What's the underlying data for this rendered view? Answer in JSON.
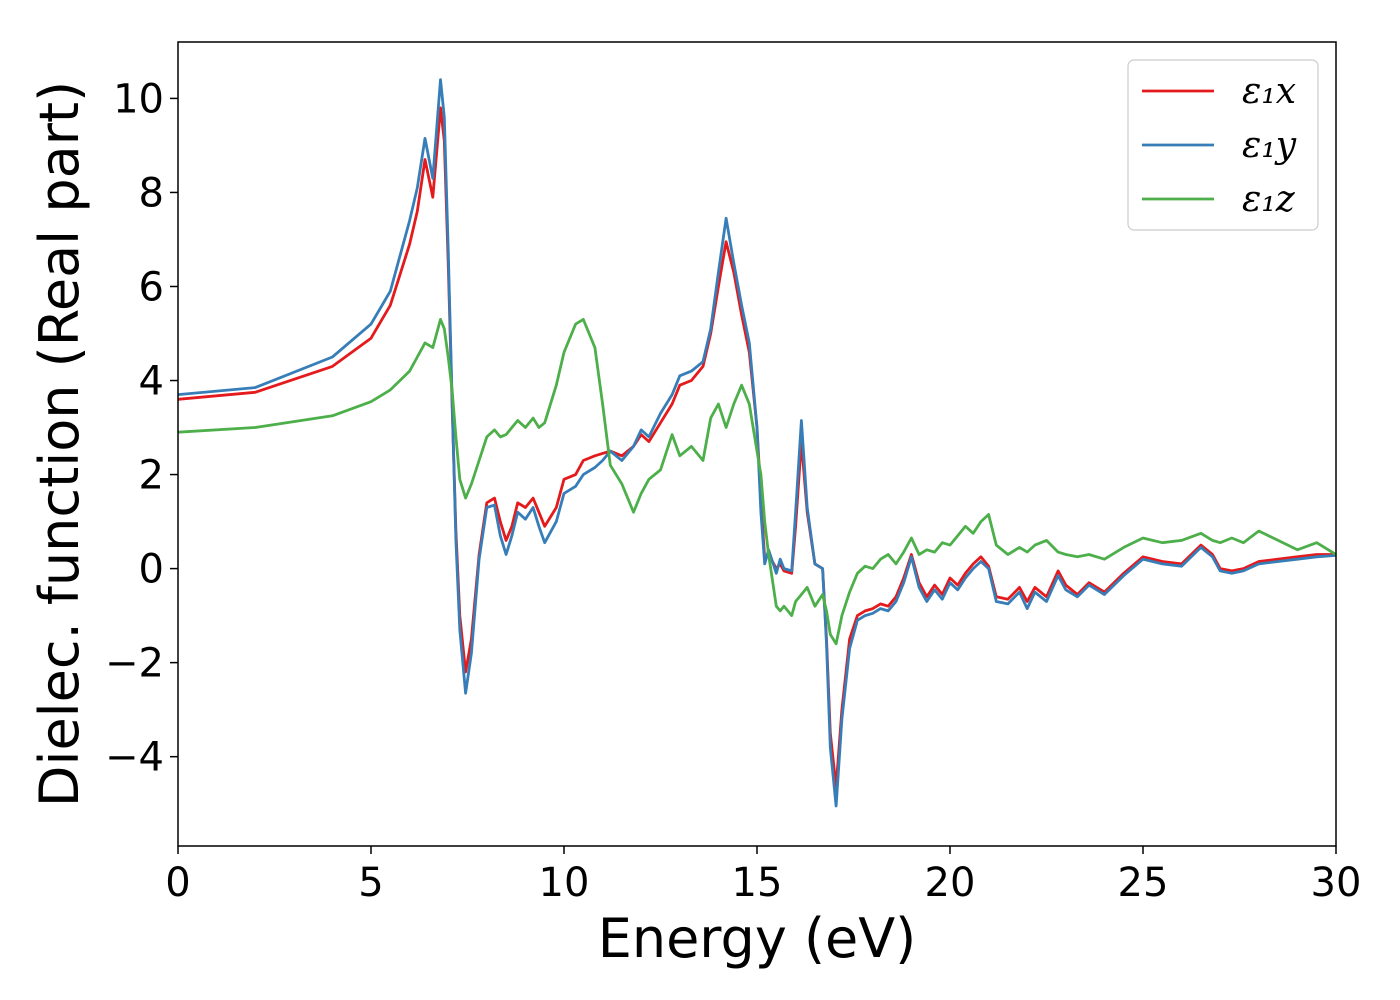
{
  "chart_data": {
    "type": "line",
    "title": "",
    "xlabel": "Energy (eV)",
    "ylabel": "Dielec. function (Real part)",
    "xlim": [
      0,
      30
    ],
    "ylim": [
      -5.9,
      11.2
    ],
    "xticks": [
      0,
      5,
      10,
      15,
      20,
      25,
      30
    ],
    "xtick_labels": [
      "0",
      "5",
      "10",
      "15",
      "20",
      "25",
      "30"
    ],
    "yticks": [
      -4,
      -2,
      0,
      2,
      4,
      6,
      8,
      10
    ],
    "ytick_labels": [
      "−4",
      "−2",
      "0",
      "2",
      "4",
      "6",
      "8",
      "10"
    ],
    "grid": false,
    "legend_position": "top-right",
    "series": [
      {
        "name": "ε₁x",
        "color": "#e41a1c",
        "x": [
          0,
          2,
          4,
          5,
          5.5,
          6,
          6.2,
          6.4,
          6.6,
          6.8,
          6.9,
          7.0,
          7.1,
          7.2,
          7.3,
          7.45,
          7.6,
          7.8,
          8.0,
          8.2,
          8.35,
          8.5,
          8.65,
          8.8,
          9.0,
          9.2,
          9.35,
          9.5,
          9.8,
          10.0,
          10.3,
          10.5,
          10.8,
          11.0,
          11.2,
          11.5,
          11.8,
          12.0,
          12.2,
          12.5,
          12.8,
          13.0,
          13.3,
          13.6,
          13.8,
          14.0,
          14.2,
          14.4,
          14.6,
          14.8,
          15.0,
          15.1,
          15.2,
          15.3,
          15.5,
          15.6,
          15.7,
          15.9,
          16.0,
          16.15,
          16.3,
          16.5,
          16.7,
          16.8,
          16.9,
          17.05,
          17.2,
          17.4,
          17.6,
          17.8,
          18.0,
          18.2,
          18.4,
          18.6,
          18.8,
          19.0,
          19.2,
          19.4,
          19.6,
          19.8,
          20.0,
          20.2,
          20.4,
          20.6,
          20.8,
          21.0,
          21.2,
          21.5,
          21.8,
          22.0,
          22.2,
          22.5,
          22.8,
          23.0,
          23.3,
          23.6,
          24.0,
          24.5,
          25.0,
          25.5,
          26.0,
          26.5,
          26.8,
          27.0,
          27.3,
          27.6,
          28.0,
          28.5,
          29.0,
          29.5,
          30.0
        ],
        "values": [
          3.6,
          3.75,
          4.3,
          4.9,
          5.6,
          6.9,
          7.6,
          8.7,
          7.9,
          9.8,
          9.1,
          6.5,
          3.5,
          0.8,
          -1.0,
          -2.2,
          -1.5,
          0.3,
          1.4,
          1.5,
          1.0,
          0.6,
          0.9,
          1.4,
          1.3,
          1.5,
          1.2,
          0.9,
          1.3,
          1.9,
          2.0,
          2.3,
          2.4,
          2.45,
          2.5,
          2.4,
          2.6,
          2.85,
          2.7,
          3.1,
          3.5,
          3.9,
          4.0,
          4.3,
          5.0,
          6.0,
          6.95,
          6.3,
          5.4,
          4.6,
          3.0,
          1.5,
          0.2,
          0.3,
          0.0,
          0.1,
          -0.05,
          -0.1,
          0.9,
          2.7,
          1.2,
          0.1,
          0.0,
          -1.5,
          -3.5,
          -4.65,
          -3.0,
          -1.5,
          -1.0,
          -0.9,
          -0.85,
          -0.75,
          -0.8,
          -0.6,
          -0.2,
          0.3,
          -0.3,
          -0.6,
          -0.35,
          -0.55,
          -0.2,
          -0.35,
          -0.1,
          0.1,
          0.25,
          0.05,
          -0.6,
          -0.65,
          -0.4,
          -0.7,
          -0.4,
          -0.6,
          -0.05,
          -0.35,
          -0.55,
          -0.3,
          -0.5,
          -0.1,
          0.25,
          0.15,
          0.1,
          0.5,
          0.3,
          0.0,
          -0.05,
          0.0,
          0.15,
          0.2,
          0.25,
          0.3,
          0.3
        ]
      },
      {
        "name": "ε₁y",
        "color": "#377eb8",
        "x": [
          0,
          2,
          4,
          5,
          5.5,
          6,
          6.2,
          6.4,
          6.6,
          6.8,
          6.9,
          7.0,
          7.1,
          7.2,
          7.3,
          7.45,
          7.6,
          7.8,
          8.0,
          8.2,
          8.35,
          8.5,
          8.65,
          8.8,
          9.0,
          9.2,
          9.35,
          9.5,
          9.8,
          10.0,
          10.3,
          10.5,
          10.8,
          11.0,
          11.2,
          11.5,
          11.8,
          12.0,
          12.2,
          12.5,
          12.8,
          13.0,
          13.3,
          13.6,
          13.8,
          14.0,
          14.2,
          14.4,
          14.6,
          14.8,
          15.0,
          15.1,
          15.2,
          15.3,
          15.5,
          15.6,
          15.7,
          15.9,
          16.0,
          16.15,
          16.3,
          16.5,
          16.7,
          16.8,
          16.9,
          17.05,
          17.2,
          17.4,
          17.6,
          17.8,
          18.0,
          18.2,
          18.4,
          18.6,
          18.8,
          19.0,
          19.2,
          19.4,
          19.6,
          19.8,
          20.0,
          20.2,
          20.4,
          20.6,
          20.8,
          21.0,
          21.2,
          21.5,
          21.8,
          22.0,
          22.2,
          22.5,
          22.8,
          23.0,
          23.3,
          23.6,
          24.0,
          24.5,
          25.0,
          25.5,
          26.0,
          26.5,
          26.8,
          27.0,
          27.3,
          27.6,
          28.0,
          28.5,
          29.0,
          29.5,
          30.0
        ],
        "values": [
          3.7,
          3.85,
          4.5,
          5.2,
          5.9,
          7.4,
          8.1,
          9.15,
          8.3,
          10.4,
          9.6,
          6.8,
          3.6,
          0.6,
          -1.3,
          -2.65,
          -1.8,
          0.2,
          1.3,
          1.35,
          0.7,
          0.3,
          0.7,
          1.2,
          1.05,
          1.3,
          0.9,
          0.55,
          1.0,
          1.6,
          1.75,
          2.0,
          2.15,
          2.3,
          2.5,
          2.3,
          2.6,
          2.95,
          2.8,
          3.3,
          3.7,
          4.1,
          4.2,
          4.4,
          5.1,
          6.3,
          7.45,
          6.5,
          5.6,
          4.8,
          3.0,
          1.2,
          0.1,
          0.4,
          -0.1,
          0.2,
          0.0,
          -0.05,
          1.2,
          3.15,
          1.3,
          0.1,
          0.0,
          -1.6,
          -3.8,
          -5.05,
          -3.2,
          -1.7,
          -1.1,
          -1.0,
          -0.95,
          -0.85,
          -0.9,
          -0.7,
          -0.3,
          0.25,
          -0.4,
          -0.7,
          -0.45,
          -0.65,
          -0.3,
          -0.45,
          -0.2,
          0.0,
          0.15,
          0.0,
          -0.7,
          -0.75,
          -0.5,
          -0.85,
          -0.5,
          -0.7,
          -0.15,
          -0.45,
          -0.6,
          -0.35,
          -0.55,
          -0.15,
          0.2,
          0.1,
          0.05,
          0.45,
          0.25,
          -0.05,
          -0.1,
          -0.05,
          0.1,
          0.15,
          0.2,
          0.25,
          0.28
        ]
      },
      {
        "name": "ε₁z",
        "color": "#4daf4a",
        "x": [
          0,
          2,
          4,
          5,
          5.5,
          6,
          6.2,
          6.4,
          6.6,
          6.8,
          6.9,
          7.0,
          7.1,
          7.2,
          7.3,
          7.45,
          7.6,
          7.8,
          8.0,
          8.2,
          8.35,
          8.5,
          8.65,
          8.8,
          9.0,
          9.2,
          9.35,
          9.5,
          9.8,
          10.0,
          10.3,
          10.5,
          10.8,
          11.0,
          11.2,
          11.5,
          11.8,
          12.0,
          12.2,
          12.5,
          12.8,
          13.0,
          13.3,
          13.6,
          13.8,
          14.0,
          14.2,
          14.4,
          14.6,
          14.8,
          15.0,
          15.1,
          15.2,
          15.3,
          15.5,
          15.6,
          15.7,
          15.9,
          16.0,
          16.15,
          16.3,
          16.5,
          16.7,
          16.8,
          16.9,
          17.05,
          17.2,
          17.4,
          17.6,
          17.8,
          18.0,
          18.2,
          18.4,
          18.6,
          18.8,
          19.0,
          19.2,
          19.4,
          19.6,
          19.8,
          20.0,
          20.2,
          20.4,
          20.6,
          20.8,
          21.0,
          21.2,
          21.5,
          21.8,
          22.0,
          22.2,
          22.5,
          22.8,
          23.0,
          23.3,
          23.6,
          24.0,
          24.5,
          25.0,
          25.5,
          26.0,
          26.5,
          26.8,
          27.0,
          27.3,
          27.6,
          28.0,
          28.5,
          29.0,
          29.5,
          30.0
        ],
        "values": [
          2.9,
          3.0,
          3.25,
          3.55,
          3.8,
          4.2,
          4.5,
          4.8,
          4.7,
          5.3,
          5.1,
          4.5,
          3.8,
          2.8,
          1.9,
          1.5,
          1.8,
          2.3,
          2.8,
          2.95,
          2.8,
          2.85,
          3.0,
          3.15,
          3.0,
          3.2,
          3.0,
          3.1,
          3.9,
          4.6,
          5.2,
          5.3,
          4.7,
          3.5,
          2.2,
          1.8,
          1.2,
          1.6,
          1.9,
          2.1,
          2.85,
          2.4,
          2.6,
          2.3,
          3.2,
          3.5,
          3.0,
          3.5,
          3.9,
          3.5,
          2.5,
          2.0,
          1.0,
          0.3,
          -0.8,
          -0.9,
          -0.8,
          -1.0,
          -0.7,
          -0.55,
          -0.4,
          -0.8,
          -0.55,
          -0.9,
          -1.4,
          -1.6,
          -1.0,
          -0.5,
          -0.1,
          0.05,
          0.0,
          0.2,
          0.3,
          0.1,
          0.35,
          0.65,
          0.3,
          0.4,
          0.35,
          0.55,
          0.5,
          0.7,
          0.9,
          0.75,
          1.0,
          1.15,
          0.5,
          0.3,
          0.45,
          0.35,
          0.5,
          0.6,
          0.35,
          0.3,
          0.25,
          0.3,
          0.2,
          0.45,
          0.65,
          0.55,
          0.6,
          0.75,
          0.6,
          0.55,
          0.65,
          0.55,
          0.8,
          0.6,
          0.4,
          0.55,
          0.3
        ]
      }
    ]
  }
}
